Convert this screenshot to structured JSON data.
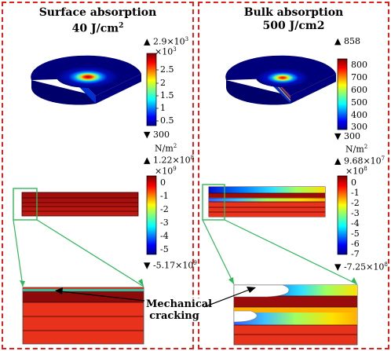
{
  "left": {
    "title_line1": "Surface absorption",
    "title_line2_num": "40 J/cm",
    "title_line2_sup": "2",
    "temp_max_mantissa": "▲ 2.9×10",
    "temp_max_exp": "3",
    "temp_scale_mantissa": "×10",
    "temp_scale_exp": "3",
    "temp_ticks": [
      "2.5",
      "2",
      "1.5",
      "1",
      "0.5"
    ],
    "temp_min": "▼ 300",
    "unit_mantissa": "N/m",
    "unit_exp": "2",
    "stress_max_mantissa": "▲ 1.22×10",
    "stress_max_exp": "8",
    "stress_scale_mantissa": "×10",
    "stress_scale_exp": "9",
    "stress_ticks": [
      "0",
      "-1",
      "-2",
      "-3",
      "-4",
      "-5"
    ],
    "stress_min_mantissa": "▼ -5.17×10",
    "stress_min_exp": "9"
  },
  "right": {
    "title_line1": "Bulk absorption",
    "title_line2": "500 J/cm2",
    "temp_max": "▲ 858",
    "temp_ticks": [
      "800",
      "700",
      "600",
      "500",
      "400",
      "300"
    ],
    "temp_min": "▼ 300",
    "unit_mantissa": "N/m",
    "unit_exp": "2",
    "stress_max_mantissa": "▲ 9.68×10",
    "stress_max_exp": "7",
    "stress_scale_mantissa": "×10",
    "stress_scale_exp": "8",
    "stress_ticks": [
      "0",
      "-1",
      "-2",
      "-3",
      "-4",
      "-5",
      "-6",
      "-7"
    ],
    "stress_min_mantissa": "▼ -7.25×10",
    "stress_min_exp": "8"
  },
  "annotation": {
    "line1": "Mechanical",
    "line2": "cracking"
  },
  "colors": {
    "frame": "#e0201c",
    "zoom": "#2fb85a",
    "deep_red": "#8c0a0a",
    "red": "#e8321c"
  }
}
